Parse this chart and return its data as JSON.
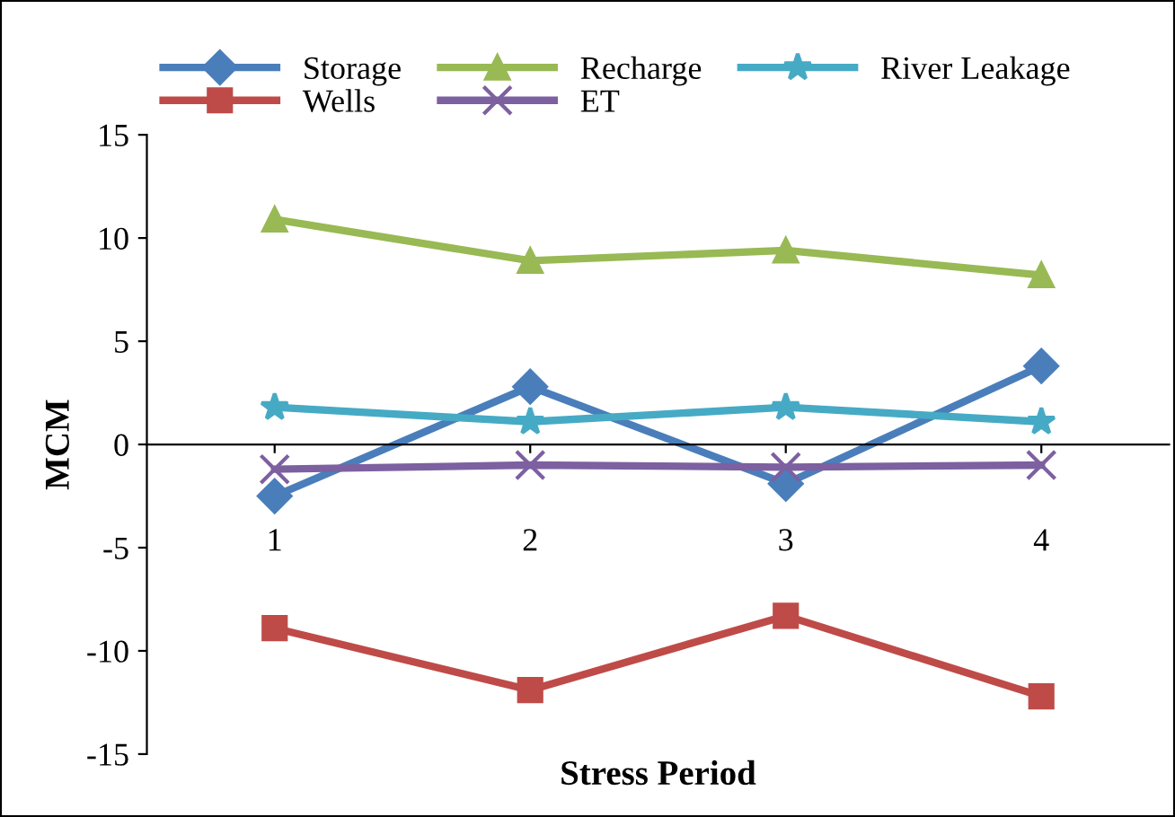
{
  "chart_data": {
    "type": "line",
    "xlabel": "Stress Period",
    "ylabel": "MCM",
    "categories": [
      "1",
      "2",
      "3",
      "4"
    ],
    "series": [
      {
        "name": "Storage",
        "color": "#4a7ebb",
        "marker": "diamond",
        "values": [
          -2.5,
          2.8,
          -1.9,
          3.8
        ]
      },
      {
        "name": "Wells",
        "color": "#be4b48",
        "marker": "square",
        "values": [
          -8.9,
          -11.9,
          -8.3,
          -12.2
        ]
      },
      {
        "name": "Recharge",
        "color": "#98b954",
        "marker": "triangle",
        "values": [
          10.9,
          8.9,
          9.4,
          8.2
        ]
      },
      {
        "name": "ET",
        "color": "#7d60a0",
        "marker": "cross",
        "values": [
          -1.2,
          -1.0,
          -1.1,
          -1.0
        ]
      },
      {
        "name": "River Leakage",
        "color": "#46aac5",
        "marker": "star",
        "values": [
          1.8,
          1.1,
          1.8,
          1.1
        ]
      }
    ],
    "ylim": [
      -15,
      15
    ],
    "yticks": [
      -15,
      -10,
      -5,
      0,
      5,
      10,
      15
    ],
    "legend": "top",
    "line_style": "solid"
  }
}
